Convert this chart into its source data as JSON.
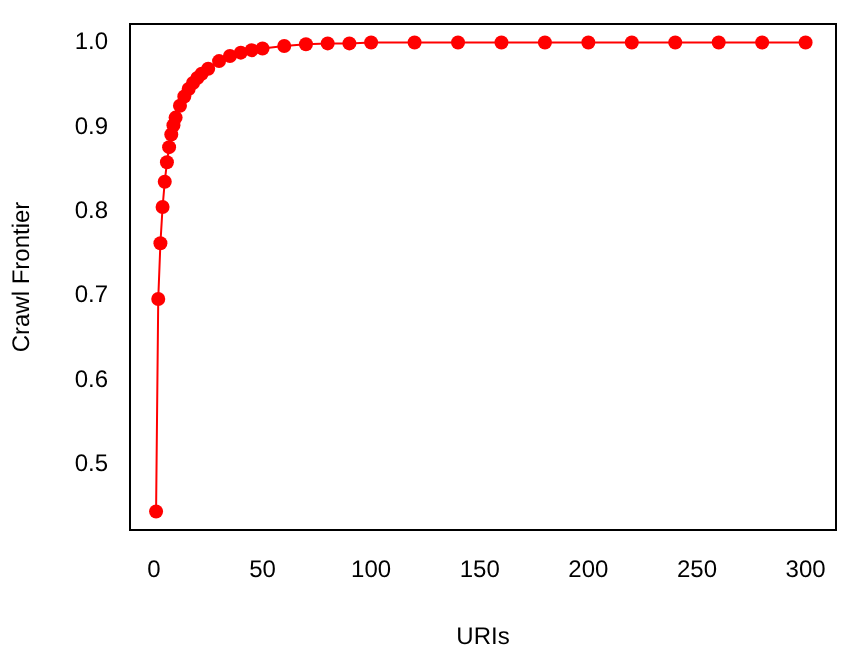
{
  "chart_data": {
    "type": "line",
    "xlabel": "URIs",
    "ylabel": "Crawl Frontier",
    "marker": "circle",
    "line_style": "solid",
    "grid": false,
    "legend": false,
    "xlim": [
      -11,
      314
    ],
    "xticks": [
      0,
      50,
      100,
      150,
      200,
      250,
      300
    ],
    "ylim": [
      0.422,
      1.022
    ],
    "yticks": [
      0.5,
      0.6,
      0.7,
      0.8,
      0.9,
      {
        "value": 1,
        "label": "1.0"
      }
    ],
    "series": [
      {
        "color": "#ff0000",
        "x": [
          1,
          2,
          3,
          4,
          5,
          6,
          7,
          8,
          9,
          10,
          12,
          14,
          16,
          18,
          20,
          22,
          25,
          30,
          35,
          40,
          45,
          50,
          60,
          70,
          80,
          90,
          100,
          120,
          140,
          160,
          180,
          200,
          220,
          240,
          260,
          280,
          300
        ],
        "values": [
          0.444,
          0.696,
          0.762,
          0.805,
          0.835,
          0.858,
          0.876,
          0.891,
          0.902,
          0.911,
          0.925,
          0.936,
          0.945,
          0.952,
          0.958,
          0.963,
          0.969,
          0.978,
          0.984,
          0.988,
          0.991,
          0.993,
          0.996,
          0.998,
          0.999,
          0.999,
          1.0,
          1.0,
          1.0,
          1.0,
          1.0,
          1.0,
          1.0,
          1.0,
          1.0,
          1.0,
          1.0
        ]
      }
    ]
  }
}
